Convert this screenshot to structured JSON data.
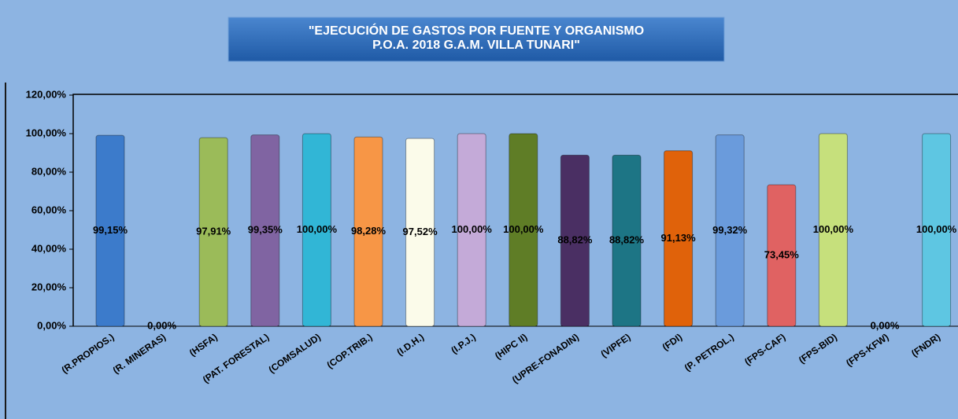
{
  "chart_data": {
    "type": "bar",
    "title": [
      "\"EJECUCIÓN DE GASTOS POR FUENTE Y ORGANISMO",
      "P.O.A. 2018 G.A.M. VILLA TUNARI\""
    ],
    "categories": [
      "(R.PROPIOS.)",
      "(R. MINERAS)",
      "(HSFA)",
      "(PAT. FORESTAL)",
      "(COMSALUD)",
      "(COP.TRIB.)",
      "(I.D.H.)",
      "(I.P.J.)",
      "(HIPC II)",
      "(UPRE-FONADIN)",
      "(VIPFE)",
      "(FDI)",
      "(P. PETROL.)",
      "(FPS-CAF)",
      "(FPS-BID)",
      "(FPS-KFW)",
      "(FNDR)"
    ],
    "values": [
      99.15,
      0,
      97.91,
      99.35,
      100,
      98.28,
      97.52,
      100,
      100,
      88.82,
      88.82,
      91.13,
      99.32,
      73.45,
      100,
      0,
      100
    ],
    "value_labels": [
      "99,15%",
      "0,00%",
      "97,91%",
      "99,35%",
      "100,00%",
      "98,28%",
      "97,52%",
      "100,00%",
      "100,00%",
      "88,82%",
      "88,82%",
      "91,13%",
      "99,32%",
      "73,45%",
      "100,00%",
      "0,00%",
      "100,00%"
    ],
    "colors": [
      "#3c7bcb",
      "#8064a2",
      "#9bbb59",
      "#8064a2",
      "#31b6d6",
      "#f79646",
      "#fbfbea",
      "#c4aad8",
      "#5f7d26",
      "#4a2f63",
      "#1d7585",
      "#e0620a",
      "#6a9bdc",
      "#e06262",
      "#c6e07c",
      "#1d7585",
      "#5ec6e2"
    ],
    "ylim": [
      0,
      120
    ],
    "yticks": [
      {
        "value": 0,
        "label": "0,00%"
      },
      {
        "value": 20,
        "label": "20,00%"
      },
      {
        "value": 40,
        "label": "40,00%"
      },
      {
        "value": 60,
        "label": "60,00%"
      },
      {
        "value": 80,
        "label": "80,00%"
      },
      {
        "value": 100,
        "label": "100,00%"
      },
      {
        "value": 120,
        "label": "120,00%"
      }
    ],
    "grid": false
  }
}
